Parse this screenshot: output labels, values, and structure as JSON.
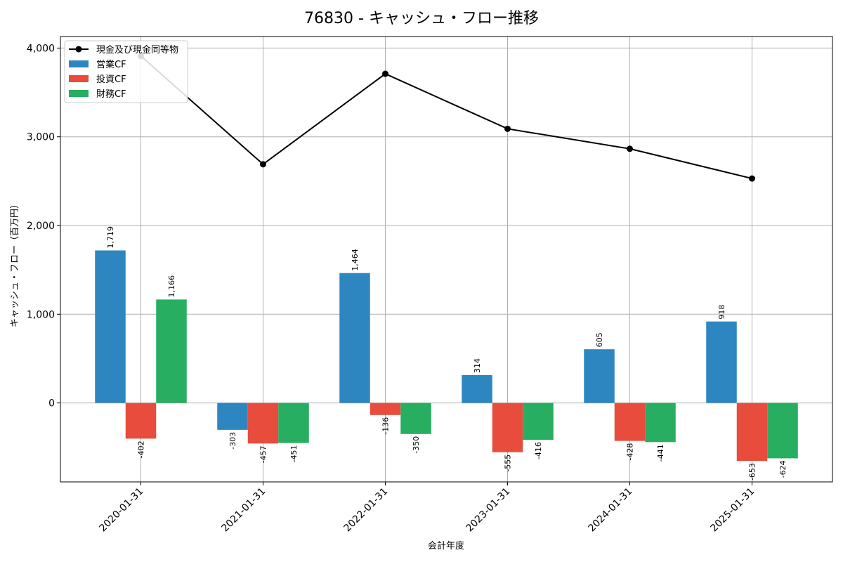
{
  "chart_data": {
    "type": "bar",
    "title": "76830 - キャッシュ・フロー推移",
    "xlabel": "会計年度",
    "ylabel": "キャッシュ・フロー（百万円）",
    "categories": [
      "2020-01-31",
      "2021-01-31",
      "2022-01-31",
      "2023-01-31",
      "2024-01-31",
      "2025-01-31"
    ],
    "ylim": [
      -890,
      4130
    ],
    "yticks": [
      0,
      1000,
      2000,
      3000,
      4000
    ],
    "ytick_labels": [
      "0",
      "1,000",
      "2,000",
      "3,000",
      "4,000"
    ],
    "grid": true,
    "legend_position": "top-left",
    "series": [
      {
        "name": "営業CF",
        "kind": "bar",
        "color": "#2e86c1",
        "values": [
          1719,
          -303,
          1464,
          314,
          605,
          918
        ],
        "labels": [
          "1,719",
          "-303",
          "1,464",
          "314",
          "605",
          "918"
        ]
      },
      {
        "name": "投資CF",
        "kind": "bar",
        "color": "#e74c3c",
        "values": [
          -402,
          -457,
          -136,
          -555,
          -428,
          -653
        ],
        "labels": [
          "-402",
          "-457",
          "-136",
          "-555",
          "-428",
          "-653"
        ]
      },
      {
        "name": "財務CF",
        "kind": "bar",
        "color": "#27ae60",
        "values": [
          1166,
          -451,
          -350,
          -416,
          -441,
          -624
        ],
        "labels": [
          "1,166",
          "-451",
          "-350",
          "-416",
          "-441",
          "-624"
        ]
      },
      {
        "name": "現金及び現金同等物",
        "kind": "line",
        "color": "#000000",
        "marker": "circle",
        "values": [
          3910,
          2690,
          3710,
          3090,
          2865,
          2530
        ]
      }
    ],
    "legend_order": [
      "現金及び現金同等物",
      "営業CF",
      "投資CF",
      "財務CF"
    ]
  }
}
